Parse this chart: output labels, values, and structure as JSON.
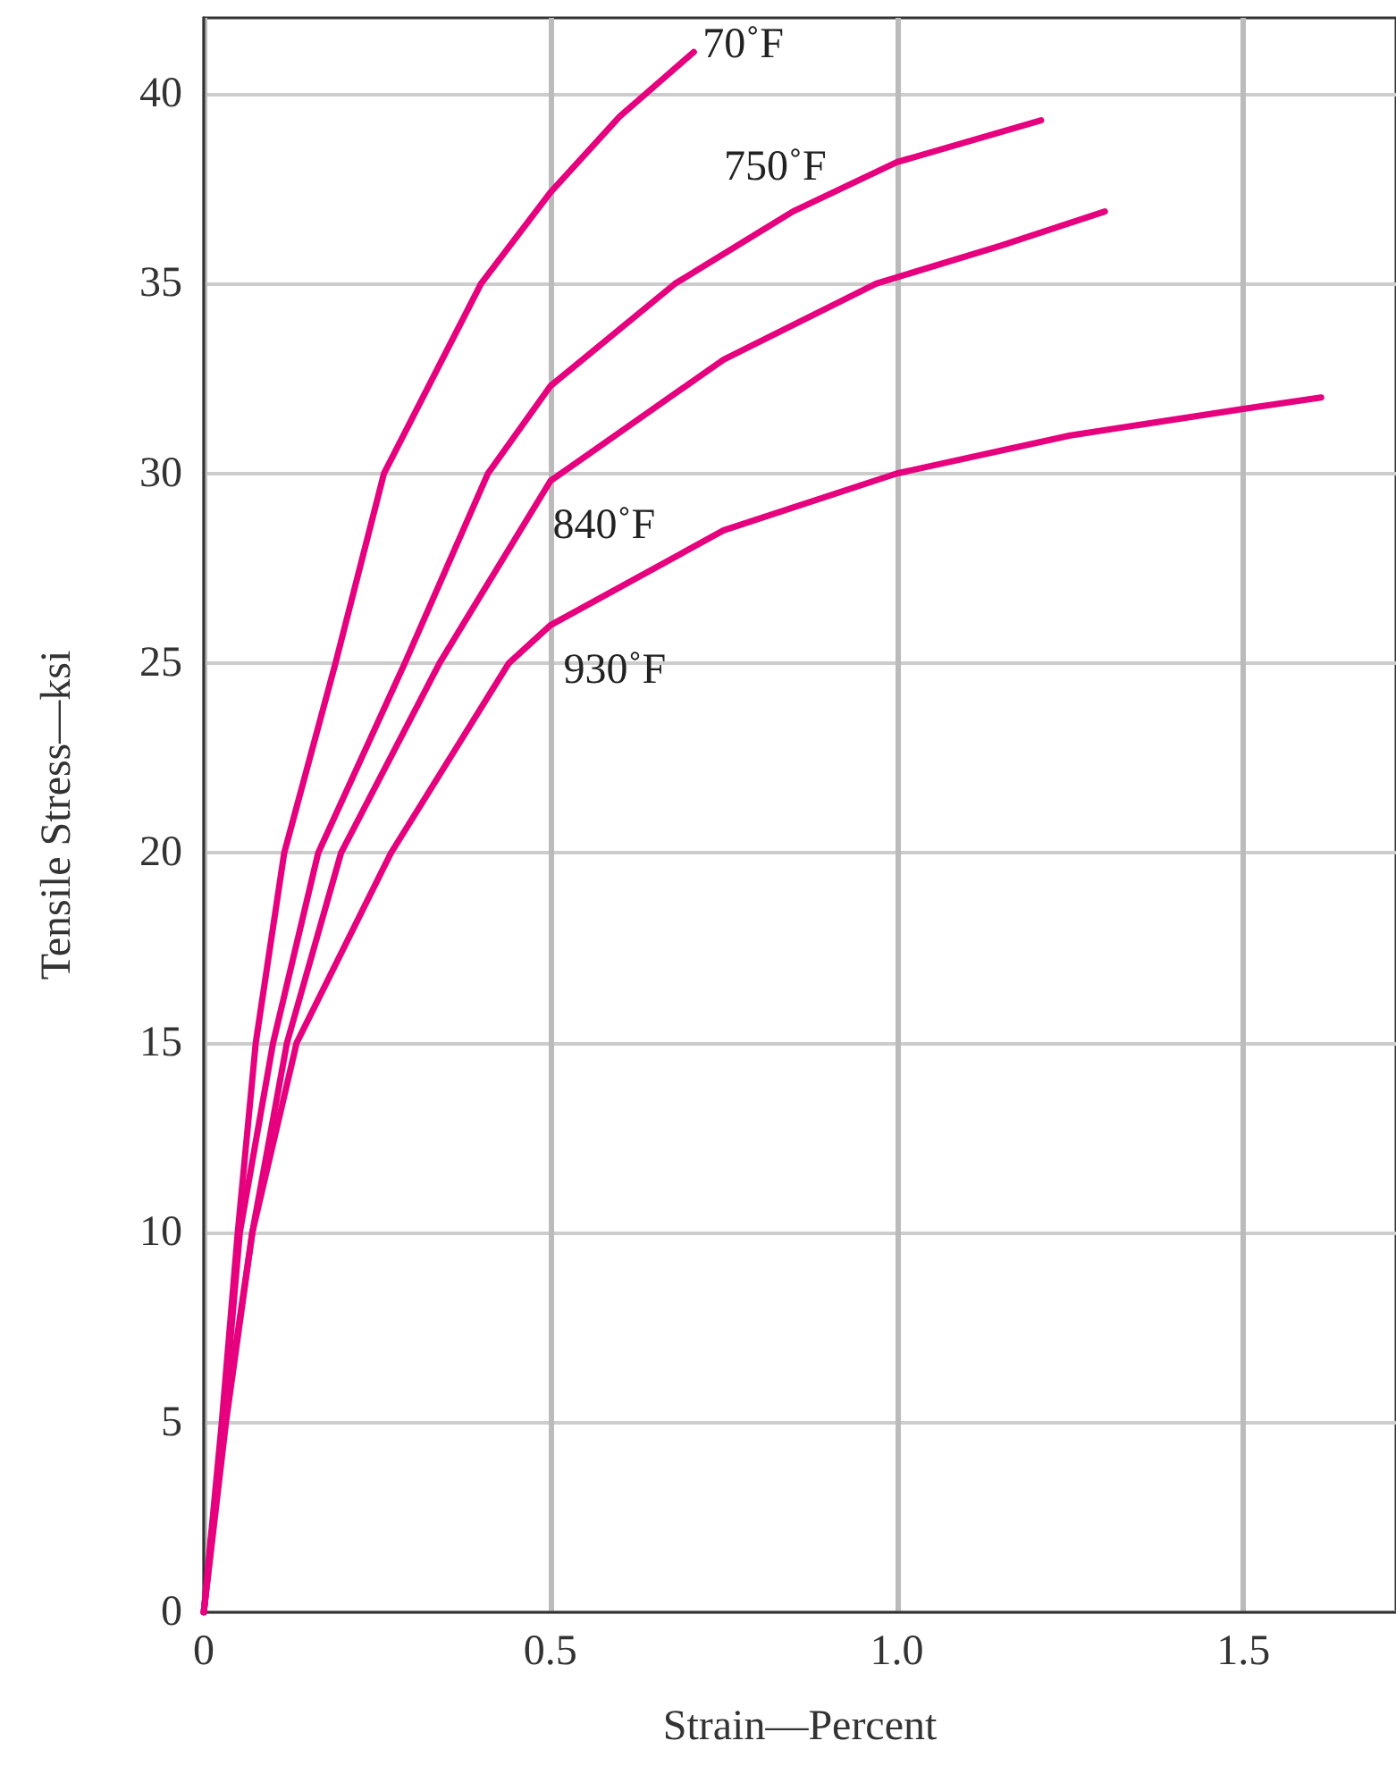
{
  "chart_data": {
    "type": "line",
    "xlabel": "Strain—Percent",
    "ylabel": "Tensile Stress—ksi",
    "xlim": [
      0,
      1.72
    ],
    "xticks": [
      0,
      0.5,
      {
        "value": 1,
        "label": "1.0"
      },
      1.5
    ],
    "ylim": [
      0,
      42
    ],
    "yticks": [
      0,
      5,
      10,
      15,
      20,
      25,
      30,
      35,
      40
    ],
    "grid": true,
    "line_style": "solid",
    "series": [
      {
        "name": "70˚F",
        "color": "#e6007e",
        "x": [
          0,
          0.026,
          0.049,
          0.075,
          0.116,
          0.19,
          0.26,
          0.4,
          0.5,
          0.6,
          0.707
        ],
        "values": [
          0,
          5,
          10,
          15,
          20,
          25,
          30,
          35,
          37.4,
          39.4,
          41.1
        ]
      },
      {
        "name": "750˚F",
        "color": "#e6007e",
        "x": [
          0,
          0.028,
          0.052,
          0.1,
          0.165,
          0.29,
          0.41,
          0.5,
          0.68,
          0.85,
          1.0,
          1.208
        ],
        "values": [
          0,
          5,
          10,
          15,
          20,
          25,
          30,
          32.3,
          35,
          36.9,
          38.2,
          39.3
        ]
      },
      {
        "name": "840˚F",
        "color": "#e6007e",
        "x": [
          0,
          0.03,
          0.07,
          0.12,
          0.198,
          0.34,
          0.5,
          0.75,
          0.97,
          1.15,
          1.3
        ],
        "values": [
          0,
          5,
          10,
          15,
          20,
          25,
          29.8,
          33,
          35,
          36,
          36.9
        ]
      },
      {
        "name": "930˚F",
        "color": "#e6007e",
        "x": [
          0,
          0.032,
          0.07,
          0.134,
          0.27,
          0.44,
          0.5,
          0.75,
          1.0,
          1.25,
          1.5,
          1.612
        ],
        "values": [
          0,
          5,
          10,
          15,
          20,
          25,
          26,
          28.5,
          30,
          31,
          31.7,
          32
        ]
      }
    ]
  }
}
